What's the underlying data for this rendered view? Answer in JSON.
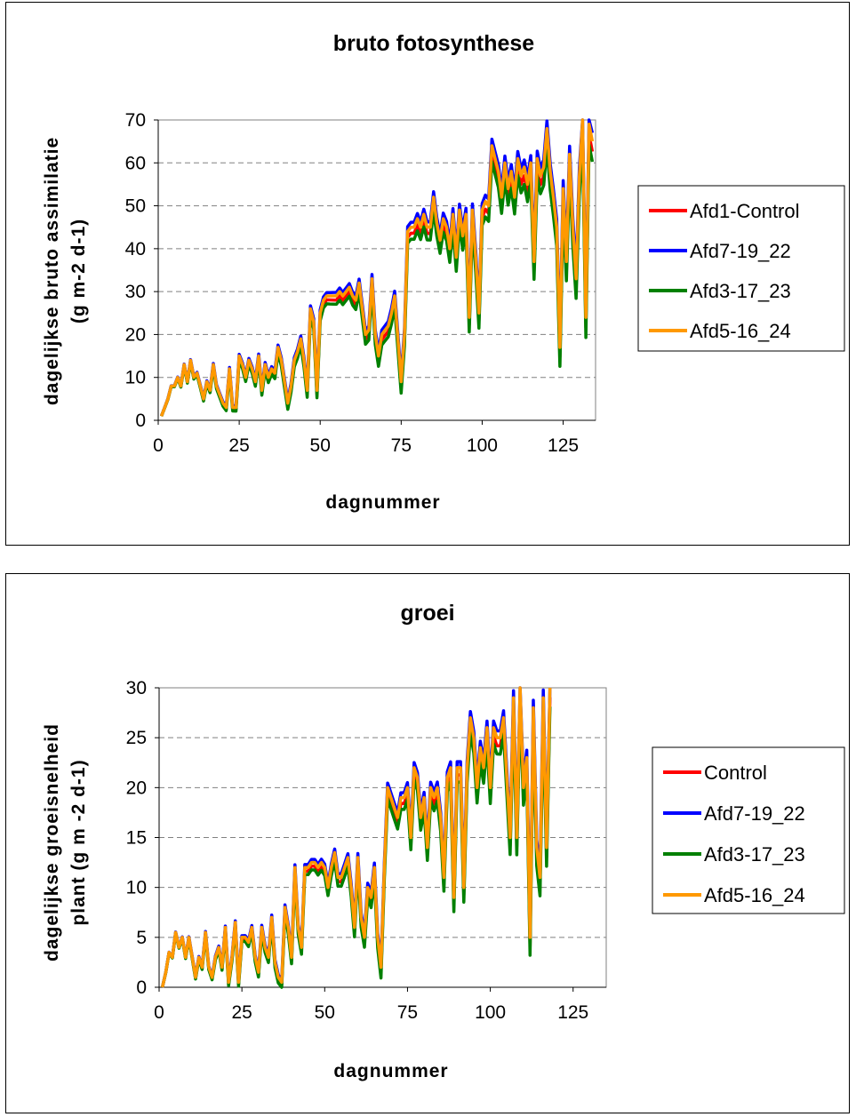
{
  "chart_data": [
    {
      "type": "line",
      "title": "bruto fotosynthese",
      "xlabel": "dagnummer",
      "ylabel_line1": "dagelijkse bruto assimilatie",
      "ylabel_line2": "(g m-2 d-1)",
      "xlim": [
        0,
        135
      ],
      "ylim": [
        0,
        70
      ],
      "xticks": [
        "0",
        "25",
        "50",
        "75",
        "100",
        "125"
      ],
      "yticks": [
        "0",
        "10",
        "20",
        "30",
        "40",
        "50",
        "60",
        "70"
      ],
      "grid": "horizontal dashed",
      "legend_position": "right",
      "series": [
        {
          "name": "Afd1-Control",
          "color": "#ff0000"
        },
        {
          "name": "Afd7-19_22",
          "color": "#0000ff"
        },
        {
          "name": "Afd3-17_23",
          "color": "#008000"
        },
        {
          "name": "Afd5-16_24",
          "color": "#ff9900"
        }
      ],
      "x": [
        1,
        2,
        3,
        4,
        5,
        6,
        7,
        8,
        9,
        10,
        11,
        12,
        13,
        14,
        15,
        16,
        17,
        18,
        19,
        20,
        21,
        22,
        23,
        24,
        25,
        26,
        27,
        28,
        29,
        30,
        31,
        32,
        33,
        34,
        35,
        36,
        37,
        38,
        39,
        40,
        41,
        42,
        43,
        44,
        45,
        46,
        47,
        48,
        49,
        50,
        51,
        52,
        53,
        54,
        55,
        56,
        57,
        58,
        59,
        60,
        61,
        62,
        63,
        64,
        65,
        66,
        67,
        68,
        69,
        70,
        71,
        72,
        73,
        74,
        75,
        76,
        77,
        78,
        79,
        80,
        81,
        82,
        83,
        84,
        85,
        86,
        87,
        88,
        89,
        90,
        91,
        92,
        93,
        94,
        95,
        96,
        97,
        98,
        99,
        100,
        101,
        102,
        103,
        104,
        105,
        106,
        107,
        108,
        109,
        110,
        111,
        112,
        113,
        114,
        115,
        116,
        117,
        118,
        119,
        120,
        121,
        122,
        123,
        124,
        125,
        126,
        127,
        128,
        129,
        130,
        131,
        132,
        133,
        134
      ],
      "values": {
        "Afd5-16_24": [
          1,
          3,
          5,
          8,
          8,
          10,
          8,
          13,
          9,
          14,
          10,
          11,
          8,
          5,
          9,
          7,
          13,
          8,
          6,
          4,
          3,
          12,
          3,
          3,
          15,
          13,
          10,
          14,
          12,
          9,
          15,
          7,
          13,
          10,
          12,
          11,
          17,
          14,
          9,
          4,
          8,
          14,
          16,
          19,
          14,
          7,
          26,
          23,
          7,
          25,
          28,
          29,
          29,
          29,
          29,
          30,
          29,
          30,
          31,
          29,
          28,
          32,
          26,
          20,
          21,
          33,
          20,
          15,
          20,
          21,
          22,
          25,
          29,
          19,
          9,
          20,
          44,
          45,
          45,
          47,
          45,
          48,
          45,
          45,
          52,
          46,
          42,
          47,
          45,
          40,
          48,
          38,
          49,
          43,
          48,
          24,
          49,
          38,
          25,
          49,
          51,
          50,
          64,
          61,
          58,
          52,
          60,
          54,
          58,
          52,
          61,
          57,
          59,
          55,
          60,
          37,
          61,
          57,
          59,
          68,
          58,
          52,
          45,
          17,
          54,
          37,
          62,
          45,
          33,
          57,
          70,
          24,
          69,
          65
        ]
      }
    },
    {
      "type": "line",
      "title": "groei",
      "xlabel": "dagnummer",
      "ylabel_line1": "dagelijkse groeisnelheid",
      "ylabel_line2": "plant (g m -2 d-1)",
      "xlim": [
        0,
        135
      ],
      "ylim": [
        0,
        30
      ],
      "xticks": [
        "0",
        "25",
        "50",
        "75",
        "100",
        "125"
      ],
      "yticks": [
        "0",
        "5",
        "10",
        "15",
        "20",
        "25",
        "30"
      ],
      "grid": "horizontal dashed",
      "legend_position": "right",
      "series": [
        {
          "name": "Control",
          "color": "#ff0000"
        },
        {
          "name": "Afd7-19_22",
          "color": "#0000ff"
        },
        {
          "name": "Afd3-17_23",
          "color": "#008000"
        },
        {
          "name": "Afd5-16_24",
          "color": "#ff9900"
        }
      ],
      "x": [
        1,
        2,
        3,
        4,
        5,
        6,
        7,
        8,
        9,
        10,
        11,
        12,
        13,
        14,
        15,
        16,
        17,
        18,
        19,
        20,
        21,
        22,
        23,
        24,
        25,
        26,
        27,
        28,
        29,
        30,
        31,
        32,
        33,
        34,
        35,
        36,
        37,
        38,
        39,
        40,
        41,
        42,
        43,
        44,
        45,
        46,
        47,
        48,
        49,
        50,
        51,
        52,
        53,
        54,
        55,
        56,
        57,
        58,
        59,
        60,
        61,
        62,
        63,
        64,
        65,
        66,
        67,
        68,
        69,
        70,
        71,
        72,
        73,
        74,
        75,
        76,
        77,
        78,
        79,
        80,
        81,
        82,
        83,
        84,
        85,
        86,
        87,
        88,
        89,
        90,
        91,
        92,
        93,
        94,
        95,
        96,
        97,
        98,
        99,
        100,
        101,
        102,
        103,
        104,
        105,
        106,
        107,
        108,
        109,
        110,
        111,
        112,
        113,
        114,
        115,
        116,
        117,
        118,
        119,
        120,
        121,
        122,
        123,
        124
      ],
      "values": {
        "Afd5-16_24": [
          0,
          1.5,
          3.5,
          3,
          5.5,
          4,
          5,
          3,
          5,
          3,
          1,
          3,
          2,
          5.5,
          2,
          1,
          3,
          4,
          2,
          6,
          0.5,
          3,
          6.5,
          0.5,
          5,
          5,
          4.5,
          6,
          3,
          1.5,
          6,
          4,
          3,
          7,
          2.5,
          1,
          0.5,
          8,
          6,
          3,
          12,
          6,
          4,
          12,
          12,
          12.5,
          12.5,
          12,
          12.5,
          12,
          10,
          12,
          13.5,
          11,
          11,
          12,
          13,
          10,
          6,
          13,
          7,
          5,
          10,
          9,
          12,
          5,
          2,
          12,
          20,
          19,
          18,
          17,
          19,
          19,
          20,
          15,
          22,
          21,
          17,
          19,
          14,
          20,
          19,
          20,
          17,
          11,
          21,
          22,
          9,
          22,
          22,
          10,
          22,
          27,
          25,
          20,
          24,
          22,
          26,
          20,
          26,
          25,
          25,
          27,
          21,
          15,
          29,
          15,
          30,
          20,
          23,
          5,
          28,
          14,
          11,
          29,
          14,
          30
        ]
      }
    }
  ]
}
